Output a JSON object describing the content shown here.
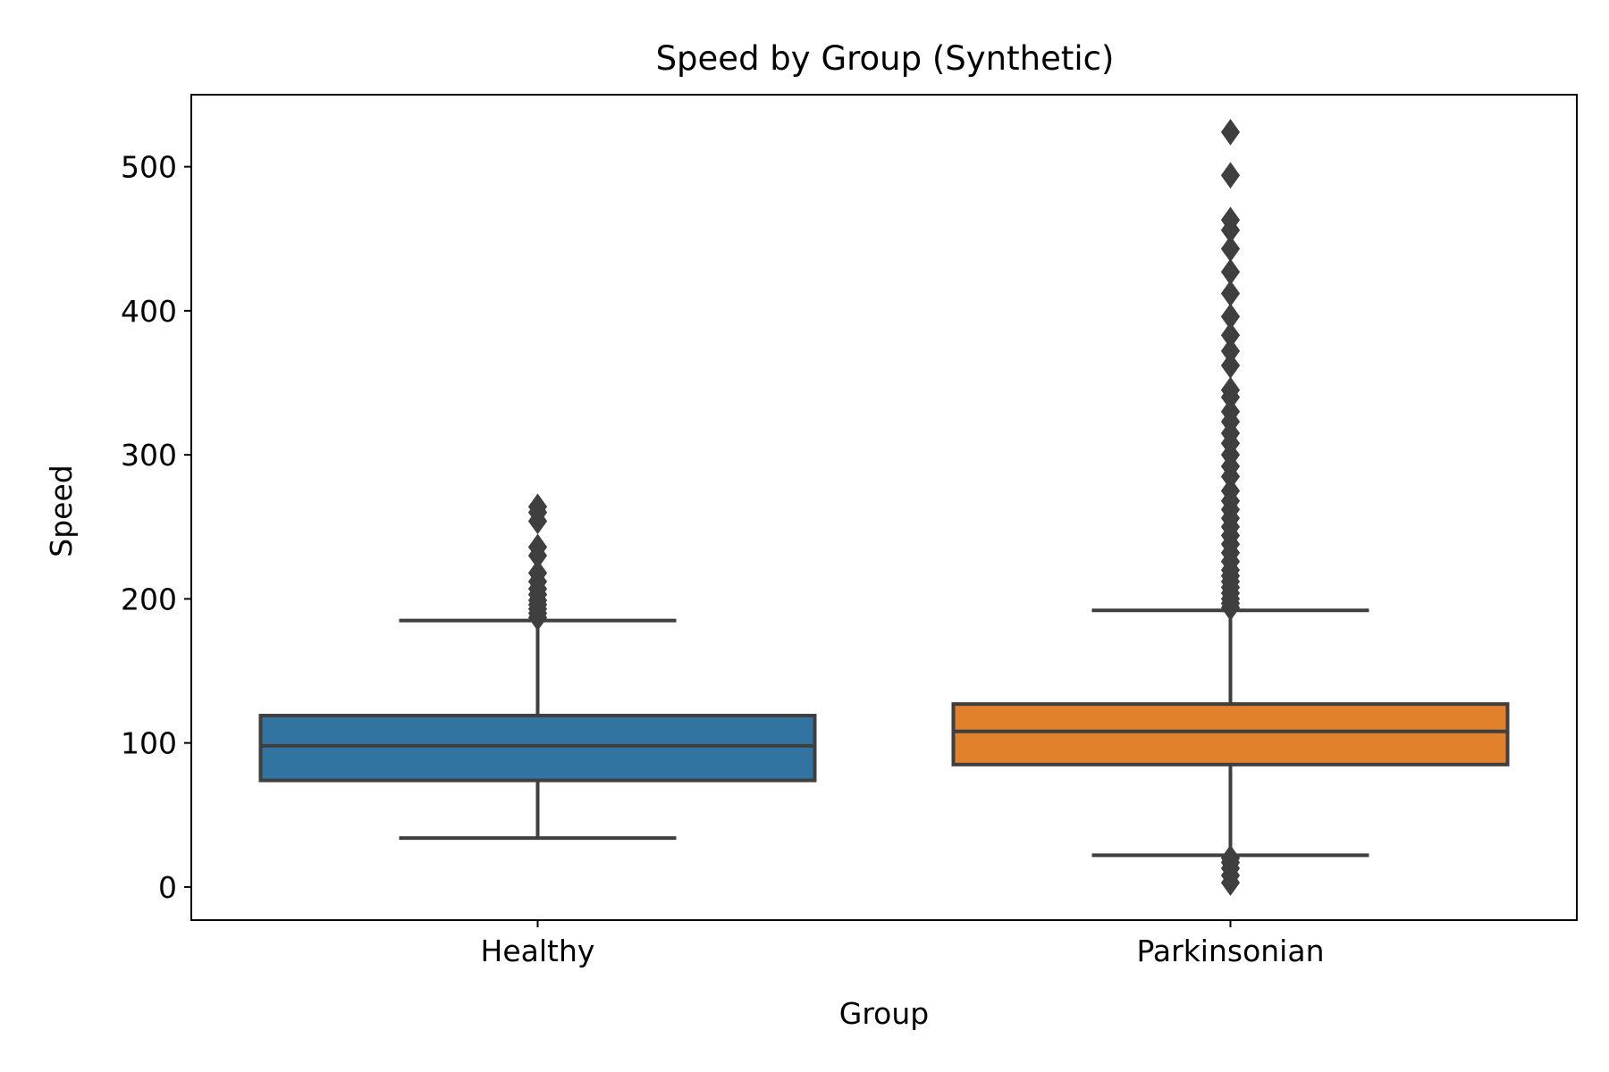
{
  "chart_data": {
    "type": "box",
    "title": "Speed by Group (Synthetic)",
    "xlabel": "Group",
    "ylabel": "Speed",
    "ylim": [
      -23,
      550
    ],
    "yticks": [
      0,
      100,
      200,
      300,
      400,
      500
    ],
    "grid": false,
    "categories": [
      "Healthy",
      "Parkinsonian"
    ],
    "boxes": [
      {
        "category": "Healthy",
        "color": "#3274a1",
        "whisker_low": 34,
        "q1": 74,
        "median": 98,
        "q3": 119,
        "whisker_high": 185,
        "outliers": [
          187,
          190,
          193,
          196,
          199,
          203,
          207,
          212,
          218,
          230,
          236,
          254,
          260,
          264
        ]
      },
      {
        "category": "Parkinsonian",
        "color": "#e1812c",
        "whisker_low": 22,
        "q1": 85,
        "median": 108,
        "q3": 127,
        "whisker_high": 192,
        "outliers": [
          3,
          8,
          13,
          17,
          20,
          194,
          197,
          200,
          204,
          208,
          212,
          216,
          220,
          226,
          232,
          238,
          244,
          250,
          256,
          262,
          268,
          275,
          285,
          292,
          300,
          308,
          315,
          323,
          330,
          340,
          345,
          362,
          372,
          383,
          396,
          412,
          427,
          443,
          456,
          463,
          494,
          524
        ]
      }
    ],
    "line_color": "#3f3f3f"
  }
}
